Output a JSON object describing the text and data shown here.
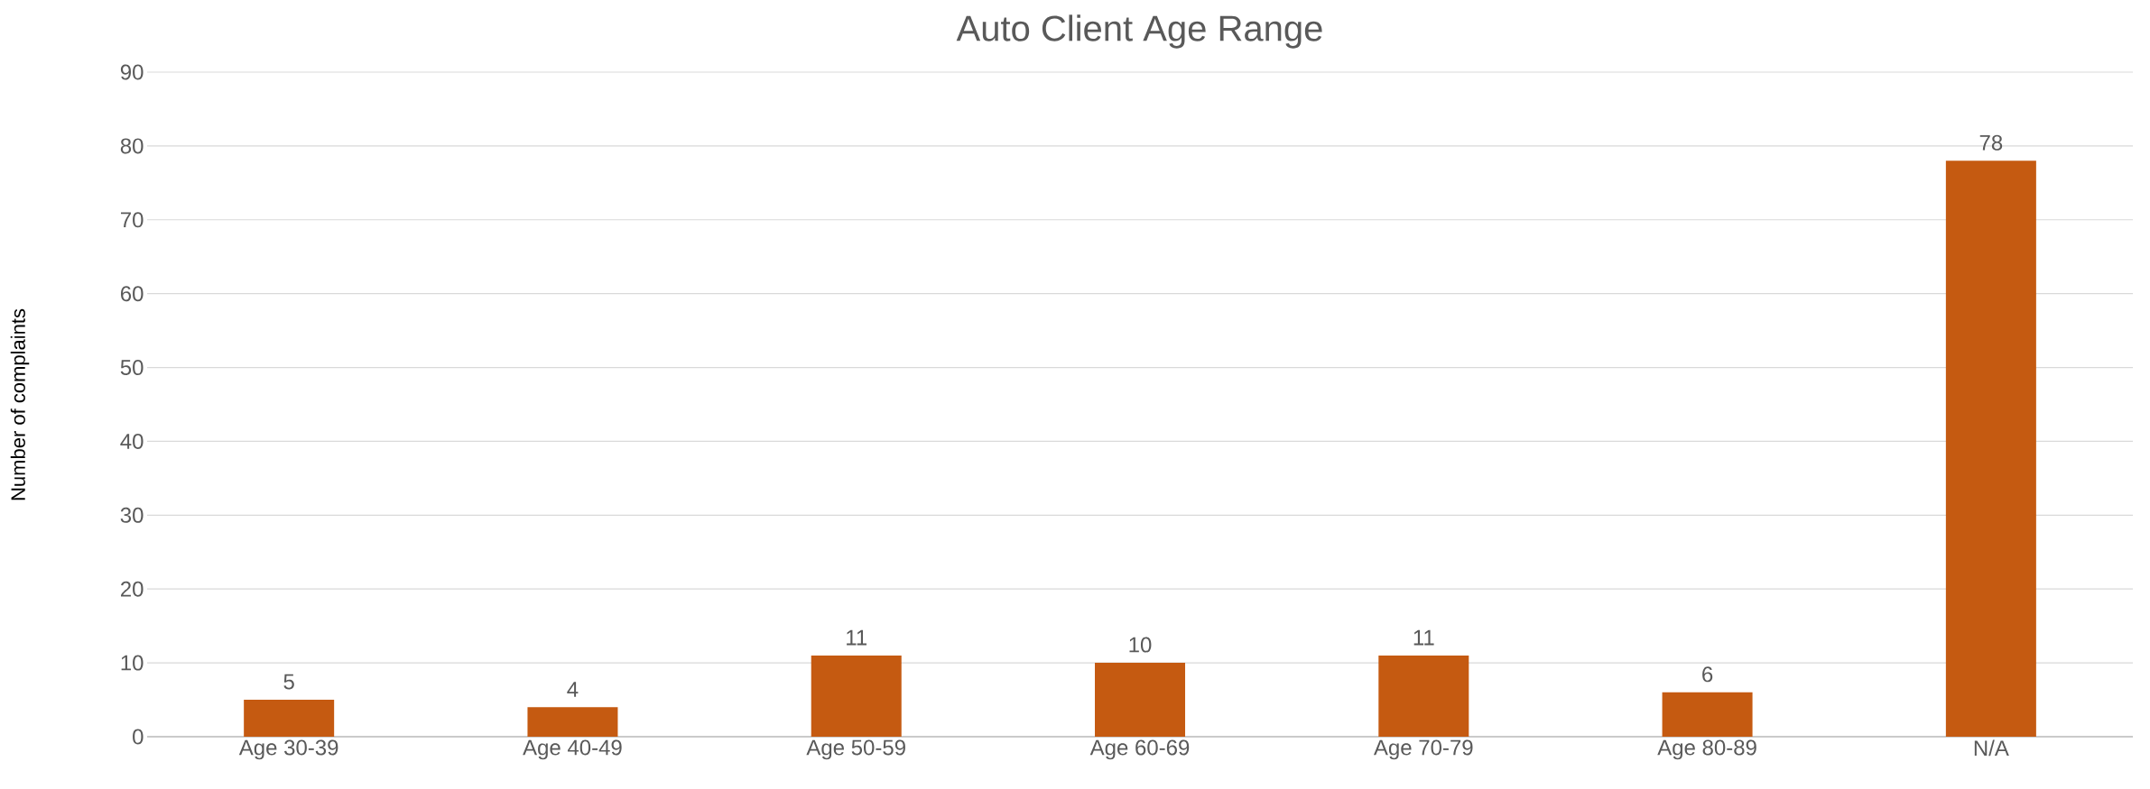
{
  "chart_data": {
    "type": "bar",
    "title": "Auto Client Age Range",
    "ylabel": "Number of complaints",
    "categories": [
      "Age 30-39",
      "Age 40-49",
      "Age 50-59",
      "Age 60-69",
      "Age 70-79",
      "Age 80-89",
      "N/A"
    ],
    "values": [
      5,
      4,
      11,
      10,
      11,
      6,
      78
    ],
    "color": "#c55a11",
    "ylim": [
      0,
      90
    ],
    "yticks": [
      0,
      10,
      20,
      30,
      40,
      50,
      60,
      70,
      80,
      90
    ],
    "grid": "y",
    "data_labels": true
  }
}
